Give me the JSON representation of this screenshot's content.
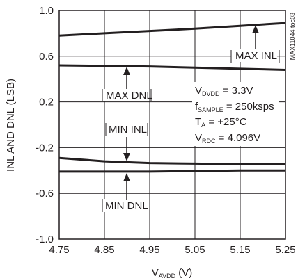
{
  "chart_data": {
    "type": "line",
    "title": "",
    "xlabel": "V",
    "xlabel_sub": "AVDD",
    "xlabel_unit": " (V)",
    "ylabel": "INL AND DNL (LSB)",
    "xlim": [
      4.75,
      5.25
    ],
    "ylim": [
      -1.0,
      1.0
    ],
    "grid": true,
    "x_ticks": [
      "4.75",
      "4.85",
      "4.95",
      "5.05",
      "5.15",
      "5.25"
    ],
    "y_ticks": [
      "1.0",
      "0.6",
      "0.2",
      "-0.2",
      "-0.6",
      "-1.0"
    ],
    "x_tick_values": [
      4.75,
      4.85,
      4.95,
      5.05,
      5.15,
      5.25
    ],
    "y_tick_values": [
      1.0,
      0.6,
      0.2,
      -0.2,
      -0.6,
      -1.0
    ],
    "series": [
      {
        "name": "MAX INL",
        "x": [
          4.75,
          4.85,
          4.95,
          5.05,
          5.15,
          5.25
        ],
        "values": [
          0.78,
          0.8,
          0.82,
          0.84,
          0.865,
          0.89
        ]
      },
      {
        "name": "MAX DNL",
        "x": [
          4.75,
          4.85,
          4.95,
          5.05,
          5.15,
          5.25
        ],
        "values": [
          0.52,
          0.515,
          0.51,
          0.5,
          0.49,
          0.48
        ]
      },
      {
        "name": "MIN INL",
        "x": [
          4.75,
          4.85,
          4.95,
          5.05,
          5.15,
          5.25
        ],
        "values": [
          -0.29,
          -0.32,
          -0.335,
          -0.34,
          -0.345,
          -0.345
        ]
      },
      {
        "name": "MIN DNL",
        "x": [
          4.75,
          4.85,
          4.95,
          5.05,
          5.15,
          5.25
        ],
        "values": [
          -0.41,
          -0.41,
          -0.41,
          -0.405,
          -0.4,
          -0.4
        ]
      }
    ],
    "conditions": [
      {
        "base": "V",
        "sub": "DVDD",
        "rest": " = 3.3V"
      },
      {
        "base": "f",
        "sub": "SAMPLE",
        "rest": " = 250ksps"
      },
      {
        "base": "T",
        "sub": "A",
        "rest": " = +25°C"
      },
      {
        "base": "V",
        "sub": "RDC",
        "rest": " = 4.096V"
      }
    ],
    "figure_id": "MAX11044 toc03"
  }
}
